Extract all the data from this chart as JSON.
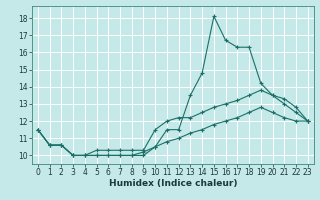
{
  "title": "",
  "xlabel": "Humidex (Indice chaleur)",
  "ylabel": "",
  "xlim": [
    -0.5,
    23.5
  ],
  "ylim": [
    9.5,
    18.7
  ],
  "bg_color": "#c5e8e8",
  "line_color": "#1a7068",
  "grid_color": "#ffffff",
  "x_ticks": [
    0,
    1,
    2,
    3,
    4,
    5,
    6,
    7,
    8,
    9,
    10,
    11,
    12,
    13,
    14,
    15,
    16,
    17,
    18,
    19,
    20,
    21,
    22,
    23
  ],
  "y_ticks": [
    10,
    11,
    12,
    13,
    14,
    15,
    16,
    17,
    18
  ],
  "line1_x": [
    0,
    1,
    2,
    3,
    4,
    5,
    6,
    7,
    8,
    9,
    10,
    11,
    12,
    13,
    14,
    15,
    16,
    17,
    18,
    19,
    20,
    21,
    22,
    23
  ],
  "line1_y": [
    11.5,
    10.6,
    10.6,
    10.0,
    10.0,
    10.0,
    10.0,
    10.0,
    10.0,
    10.0,
    10.5,
    11.5,
    11.5,
    13.5,
    14.8,
    18.1,
    16.7,
    16.3,
    16.3,
    14.2,
    13.5,
    13.3,
    12.8,
    12.0
  ],
  "line2_x": [
    0,
    1,
    2,
    3,
    4,
    5,
    6,
    7,
    8,
    9,
    10,
    11,
    12,
    13,
    14,
    15,
    16,
    17,
    18,
    19,
    20,
    21,
    22,
    23
  ],
  "line2_y": [
    11.5,
    10.6,
    10.6,
    10.0,
    10.0,
    10.3,
    10.3,
    10.3,
    10.3,
    10.3,
    11.5,
    12.0,
    12.2,
    12.2,
    12.5,
    12.8,
    13.0,
    13.2,
    13.5,
    13.8,
    13.5,
    13.0,
    12.5,
    12.0
  ],
  "line3_x": [
    0,
    1,
    2,
    3,
    4,
    5,
    6,
    7,
    8,
    9,
    10,
    11,
    12,
    13,
    14,
    15,
    16,
    17,
    18,
    19,
    20,
    21,
    22,
    23
  ],
  "line3_y": [
    11.5,
    10.6,
    10.6,
    10.0,
    10.0,
    10.0,
    10.0,
    10.0,
    10.0,
    10.2,
    10.5,
    10.8,
    11.0,
    11.3,
    11.5,
    11.8,
    12.0,
    12.2,
    12.5,
    12.8,
    12.5,
    12.2,
    12.0,
    12.0
  ]
}
